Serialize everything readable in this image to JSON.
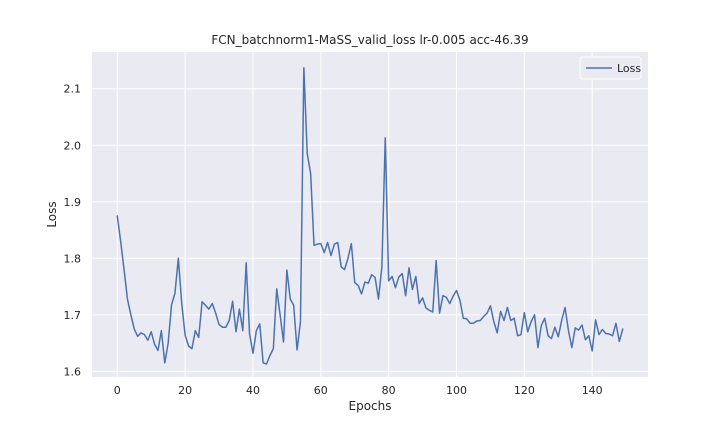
{
  "chart_data": {
    "type": "line",
    "title": "FCN_batchnorm1-MaSS_valid_loss lr-0.005 acc-46.39",
    "xlabel": "Epochs",
    "ylabel": "Loss",
    "xlim": [
      -7.45,
      156.45
    ],
    "ylim": [
      1.59,
      2.165
    ],
    "xticks": [
      0,
      20,
      40,
      60,
      80,
      100,
      120,
      140
    ],
    "yticks": [
      1.6,
      1.7,
      1.8,
      1.9,
      2.0,
      2.1
    ],
    "ytick_labels": [
      "1.6",
      "1.7",
      "1.8",
      "1.9",
      "2.0",
      "2.1"
    ],
    "grid": true,
    "legend_position": "top-right",
    "colors": {
      "line": "#4c72b0",
      "plot_background": "#eaeaf2",
      "grid": "#ffffff"
    },
    "series": [
      {
        "name": "Loss",
        "x": [
          0,
          1,
          2,
          3,
          4,
          5,
          6,
          7,
          8,
          9,
          10,
          11,
          12,
          13,
          14,
          15,
          16,
          17,
          18,
          19,
          20,
          21,
          22,
          23,
          24,
          25,
          26,
          27,
          28,
          29,
          30,
          31,
          32,
          33,
          34,
          35,
          36,
          37,
          38,
          39,
          40,
          41,
          42,
          43,
          44,
          45,
          46,
          47,
          48,
          49,
          50,
          51,
          52,
          53,
          54,
          55,
          56,
          57,
          58,
          59,
          60,
          61,
          62,
          63,
          64,
          65,
          66,
          67,
          68,
          69,
          70,
          71,
          72,
          73,
          74,
          75,
          76,
          77,
          78,
          79,
          80,
          81,
          82,
          83,
          84,
          85,
          86,
          87,
          88,
          89,
          90,
          91,
          92,
          93,
          94,
          95,
          96,
          97,
          98,
          99,
          100,
          101,
          102,
          103,
          104,
          105,
          106,
          107,
          108,
          109,
          110,
          111,
          112,
          113,
          114,
          115,
          116,
          117,
          118,
          119,
          120,
          121,
          122,
          123,
          124,
          125,
          126,
          127,
          128,
          129,
          130,
          131,
          132,
          133,
          134,
          135,
          136,
          137,
          138,
          139,
          140,
          141,
          142,
          143,
          144,
          145,
          146,
          147,
          148,
          149
        ],
        "values": [
          1.875,
          1.83,
          1.78,
          1.728,
          1.7,
          1.675,
          1.662,
          1.668,
          1.665,
          1.655,
          1.67,
          1.648,
          1.637,
          1.672,
          1.615,
          1.65,
          1.718,
          1.738,
          1.8,
          1.72,
          1.664,
          1.645,
          1.64,
          1.672,
          1.66,
          1.723,
          1.717,
          1.71,
          1.72,
          1.703,
          1.683,
          1.678,
          1.678,
          1.69,
          1.724,
          1.67,
          1.71,
          1.672,
          1.792,
          1.666,
          1.632,
          1.672,
          1.684,
          1.615,
          1.613,
          1.628,
          1.64,
          1.746,
          1.7,
          1.652,
          1.779,
          1.728,
          1.717,
          1.638,
          1.688,
          2.137,
          1.985,
          1.95,
          1.823,
          1.825,
          1.826,
          1.81,
          1.828,
          1.805,
          1.825,
          1.828,
          1.785,
          1.78,
          1.8,
          1.826,
          1.757,
          1.752,
          1.737,
          1.758,
          1.756,
          1.771,
          1.766,
          1.728,
          1.785,
          2.013,
          1.76,
          1.768,
          1.748,
          1.767,
          1.773,
          1.734,
          1.783,
          1.745,
          1.768,
          1.72,
          1.73,
          1.712,
          1.708,
          1.705,
          1.796,
          1.703,
          1.734,
          1.731,
          1.72,
          1.733,
          1.743,
          1.726,
          1.694,
          1.693,
          1.685,
          1.685,
          1.689,
          1.69,
          1.697,
          1.703,
          1.716,
          1.688,
          1.668,
          1.706,
          1.69,
          1.713,
          1.69,
          1.694,
          1.663,
          1.665,
          1.704,
          1.67,
          1.688,
          1.7,
          1.642,
          1.681,
          1.694,
          1.663,
          1.658,
          1.678,
          1.661,
          1.69,
          1.713,
          1.672,
          1.642,
          1.677,
          1.673,
          1.682,
          1.656,
          1.663,
          1.636,
          1.691,
          1.665,
          1.674,
          1.667,
          1.666,
          1.663,
          1.685,
          1.653,
          1.675
        ]
      }
    ]
  }
}
